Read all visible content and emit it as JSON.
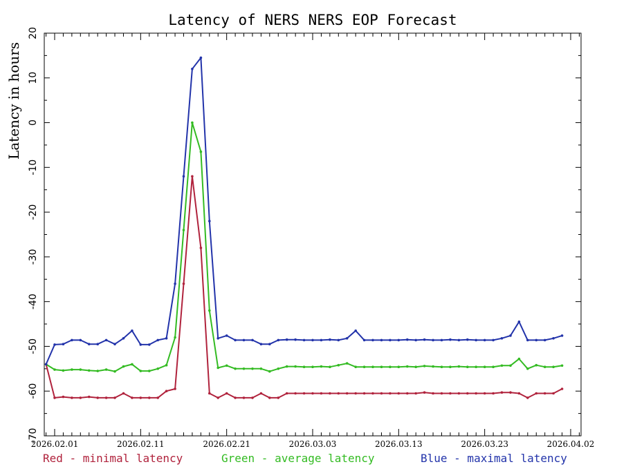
{
  "chart_data": {
    "type": "line",
    "title": "Latency of NERS NERS EOP Forecast",
    "ylabel": "Latency in hours",
    "xlabel": "",
    "ylim": [
      -70,
      20
    ],
    "xlim": [
      "2026-02-01",
      "2026-04-02"
    ],
    "y_reversed": true,
    "grid": false,
    "yticks": [
      "20",
      "10",
      "0",
      "-10",
      "-20",
      "-30",
      "-40",
      "-50",
      "-60",
      "-70"
    ],
    "xticks": [
      "2026.02.01",
      "2026.02.11",
      "2026.02.21",
      "2026.03.03",
      "2026.03.13",
      "2026.03.23",
      "2026.04.02"
    ],
    "x": [
      "2026-01-31",
      "2026-02-01",
      "2026-02-02",
      "2026-02-03",
      "2026-02-04",
      "2026-02-05",
      "2026-02-06",
      "2026-02-07",
      "2026-02-08",
      "2026-02-09",
      "2026-02-10",
      "2026-02-11",
      "2026-02-12",
      "2026-02-13",
      "2026-02-14",
      "2026-02-15",
      "2026-02-16",
      "2026-02-17",
      "2026-02-18",
      "2026-02-19",
      "2026-02-20",
      "2026-02-21",
      "2026-02-22",
      "2026-02-23",
      "2026-02-24",
      "2026-02-25",
      "2026-02-26",
      "2026-02-27",
      "2026-02-28",
      "2026-03-01",
      "2026-03-02",
      "2026-03-03",
      "2026-03-04",
      "2026-03-05",
      "2026-03-06",
      "2026-03-07",
      "2026-03-08",
      "2026-03-09",
      "2026-03-10",
      "2026-03-11",
      "2026-03-12",
      "2026-03-13",
      "2026-03-14",
      "2026-03-15",
      "2026-03-16",
      "2026-03-17",
      "2026-03-18",
      "2026-03-19",
      "2026-03-20",
      "2026-03-21",
      "2026-03-22",
      "2026-03-23",
      "2026-03-24",
      "2026-03-25",
      "2026-03-26",
      "2026-03-27",
      "2026-03-28",
      "2026-03-29",
      "2026-03-30",
      "2026-03-31",
      "2026-04-01"
    ],
    "series": [
      {
        "name": "Red - minimal latency",
        "color": "#b0223c",
        "values": [
          -54,
          -61.5,
          -61.3,
          -61.5,
          -61.5,
          -61.3,
          -61.5,
          -61.5,
          -61.5,
          -60.5,
          -61.5,
          -61.5,
          -61.5,
          -61.5,
          -60,
          -59.5,
          -36,
          -12,
          -28,
          -60.5,
          -61.5,
          -60.5,
          -61.5,
          -61.5,
          -61.5,
          -60.5,
          -61.5,
          -61.5,
          -60.5,
          -60.5,
          -60.5,
          -60.5,
          -60.5,
          -60.5,
          -60.5,
          -60.5,
          -60.5,
          -60.5,
          -60.5,
          -60.5,
          -60.5,
          -60.5,
          -60.5,
          -60.5,
          -60.3,
          -60.5,
          -60.5,
          -60.5,
          -60.5,
          -60.5,
          -60.5,
          -60.5,
          -60.5,
          -60.3,
          -60.3,
          -60.5,
          -61.5,
          -60.5,
          -60.5,
          -60.5,
          -59.5
        ]
      },
      {
        "name": "Green - average latency",
        "color": "#33bb22",
        "values": [
          -54,
          -55.2,
          -55.4,
          -55.2,
          -55.2,
          -55.4,
          -55.5,
          -55.2,
          -55.6,
          -54.5,
          -54,
          -55.5,
          -55.5,
          -55,
          -54.2,
          -48,
          -24,
          0,
          -6.5,
          -42,
          -54.8,
          -54.3,
          -55,
          -55,
          -55,
          -55,
          -55.6,
          -55,
          -54.5,
          -54.5,
          -54.6,
          -54.6,
          -54.5,
          -54.6,
          -54.2,
          -53.8,
          -54.6,
          -54.6,
          -54.6,
          -54.6,
          -54.6,
          -54.6,
          -54.5,
          -54.6,
          -54.4,
          -54.5,
          -54.6,
          -54.6,
          -54.5,
          -54.6,
          -54.6,
          -54.6,
          -54.6,
          -54.3,
          -54.3,
          -52.8,
          -55,
          -54.2,
          -54.6,
          -54.6,
          -54.3
        ]
      },
      {
        "name": "Blue - maximal latency",
        "color": "#2233aa",
        "values": [
          -54,
          -49.6,
          -49.5,
          -48.6,
          -48.6,
          -49.5,
          -49.5,
          -48.6,
          -49.5,
          -48.2,
          -46.5,
          -49.6,
          -49.6,
          -48.6,
          -48.2,
          -36,
          -12,
          12,
          14.5,
          -22,
          -48.2,
          -47.6,
          -48.6,
          -48.6,
          -48.6,
          -49.5,
          -49.5,
          -48.6,
          -48.5,
          -48.5,
          -48.6,
          -48.6,
          -48.6,
          -48.5,
          -48.6,
          -48.2,
          -46.5,
          -48.6,
          -48.6,
          -48.6,
          -48.6,
          -48.6,
          -48.5,
          -48.6,
          -48.5,
          -48.6,
          -48.6,
          -48.5,
          -48.6,
          -48.5,
          -48.6,
          -48.6,
          -48.6,
          -48.2,
          -47.6,
          -44.5,
          -48.6,
          -48.6,
          -48.6,
          -48.2,
          -47.6
        ]
      }
    ]
  }
}
